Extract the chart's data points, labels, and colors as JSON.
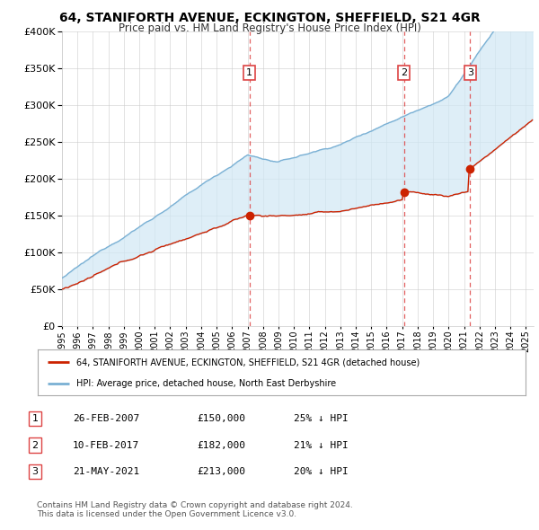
{
  "title": "64, STANIFORTH AVENUE, ECKINGTON, SHEFFIELD, S21 4GR",
  "subtitle": "Price paid vs. HM Land Registry's House Price Index (HPI)",
  "ylim": [
    0,
    400000
  ],
  "yticks": [
    0,
    50000,
    100000,
    150000,
    200000,
    250000,
    300000,
    350000,
    400000
  ],
  "hpi_color": "#7ab0d4",
  "price_color": "#cc2200",
  "fill_color": "#d0e8f5",
  "vline_color": "#dd4444",
  "marker_color": "#cc2200",
  "transaction_years": [
    2007.123,
    2017.111,
    2021.389
  ],
  "transaction_prices": [
    150000,
    182000,
    213000
  ],
  "transaction_labels": [
    "1",
    "2",
    "3"
  ],
  "legend_price_label": "64, STANIFORTH AVENUE, ECKINGTON, SHEFFIELD, S21 4GR (detached house)",
  "legend_hpi_label": "HPI: Average price, detached house, North East Derbyshire",
  "table_rows": [
    [
      "1",
      "26-FEB-2007",
      "£150,000",
      "25% ↓ HPI"
    ],
    [
      "2",
      "10-FEB-2017",
      "£182,000",
      "21% ↓ HPI"
    ],
    [
      "3",
      "21-MAY-2021",
      "£213,000",
      "20% ↓ HPI"
    ]
  ],
  "footer": "Contains HM Land Registry data © Crown copyright and database right 2024.\nThis data is licensed under the Open Government Licence v3.0.",
  "background_color": "#ffffff",
  "grid_color": "#cccccc",
  "xlim_start": 1995,
  "xlim_end": 2025.5
}
